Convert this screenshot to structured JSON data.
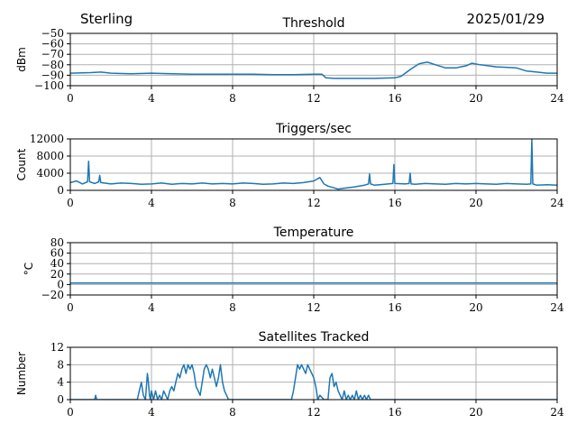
{
  "header": {
    "site": "Sterling",
    "date": "2025/01/29"
  },
  "colors": {
    "series": "#1f77b4",
    "grid": "#b0b0b0"
  },
  "chart_data": [
    {
      "type": "line",
      "title": "Threshold",
      "ylabel": "dBm",
      "xlim": [
        0,
        24
      ],
      "ylim": [
        -100,
        -50
      ],
      "xticks": [
        "0",
        "4",
        "8",
        "12",
        "16",
        "20",
        "24"
      ],
      "yticks": [
        "−100",
        "−90",
        "−80",
        "−70",
        "−60",
        "−50"
      ],
      "grid": true,
      "x": [
        0,
        1,
        1.5,
        2,
        3,
        4,
        5,
        6,
        7,
        8,
        9,
        10,
        11,
        12,
        12.4,
        12.6,
        13,
        14,
        15,
        16,
        16.3,
        16.8,
        17.2,
        17.6,
        18,
        18.5,
        19,
        19.5,
        19.8,
        20.2,
        21,
        22,
        22.5,
        23,
        23.5,
        24
      ],
      "y": [
        -88,
        -87.5,
        -87,
        -88,
        -88.5,
        -88,
        -88.5,
        -89,
        -89,
        -89,
        -89,
        -89.5,
        -89.5,
        -89,
        -89,
        -92.5,
        -93,
        -93,
        -93,
        -92.5,
        -91,
        -84,
        -79,
        -77.5,
        -80,
        -83,
        -83,
        -81,
        -78.5,
        -80,
        -82,
        -83,
        -86,
        -87,
        -88,
        -88
      ]
    },
    {
      "type": "line",
      "title": "Triggers/sec",
      "ylabel": "Count",
      "xlim": [
        0,
        24
      ],
      "ylim": [
        0,
        12000
      ],
      "xticks": [
        "0",
        "4",
        "8",
        "12",
        "16",
        "20",
        "24"
      ],
      "yticks": [
        "0",
        "4000",
        "8000",
        "12000"
      ],
      "grid": true,
      "x": [
        0,
        0.3,
        0.6,
        0.85,
        0.9,
        0.95,
        1.2,
        1.4,
        1.45,
        1.5,
        2,
        2.5,
        3,
        3.5,
        4,
        4.5,
        5,
        5.5,
        6,
        6.5,
        7,
        7.5,
        8,
        8.5,
        9,
        9.5,
        10,
        10.5,
        11,
        11.5,
        12,
        12.3,
        12.5,
        12.7,
        13,
        13.2,
        13.5,
        14,
        14.5,
        14.7,
        14.75,
        14.8,
        15,
        15.5,
        15.9,
        15.95,
        16,
        16.5,
        16.7,
        16.75,
        16.8,
        17,
        17.5,
        18,
        18.5,
        19,
        19.5,
        20,
        20.5,
        21,
        21.5,
        22,
        22.5,
        22.7,
        22.75,
        22.8,
        23,
        23.5,
        24
      ],
      "y": [
        1800,
        2200,
        1500,
        2000,
        6800,
        2000,
        1600,
        2000,
        3500,
        1800,
        1500,
        1700,
        1600,
        1400,
        1500,
        1700,
        1400,
        1600,
        1500,
        1700,
        1500,
        1600,
        1500,
        1700,
        1600,
        1400,
        1500,
        1700,
        1600,
        1800,
        2200,
        3000,
        1500,
        1000,
        600,
        300,
        500,
        800,
        1200,
        1500,
        3800,
        1500,
        1200,
        1400,
        1600,
        6000,
        1600,
        1500,
        1600,
        4000,
        1500,
        1400,
        1600,
        1500,
        1400,
        1600,
        1500,
        1600,
        1500,
        1400,
        1600,
        1500,
        1400,
        1500,
        12000,
        1500,
        1200,
        1300,
        1200
      ]
    },
    {
      "type": "line",
      "title": "Temperature",
      "ylabel": "°C",
      "xlim": [
        0,
        24
      ],
      "ylim": [
        -20,
        80
      ],
      "xticks": [
        "0",
        "4",
        "8",
        "12",
        "16",
        "20",
        "24"
      ],
      "yticks": [
        "−20",
        "0",
        "20",
        "40",
        "60",
        "80"
      ],
      "grid": true,
      "x": [
        0,
        24
      ],
      "y": [
        3,
        3
      ]
    },
    {
      "type": "line",
      "title": "Satellites Tracked",
      "ylabel": "Number",
      "xlim": [
        0,
        24
      ],
      "ylim": [
        0,
        12
      ],
      "xticks": [
        "0",
        "4",
        "8",
        "12",
        "16",
        "20",
        "24"
      ],
      "yticks": [
        "0",
        "4",
        "8",
        "12"
      ],
      "grid": true,
      "x": [
        0,
        1.2,
        1.25,
        1.3,
        1.35,
        3.3,
        3.4,
        3.5,
        3.6,
        3.7,
        3.75,
        3.8,
        3.85,
        3.9,
        3.95,
        4,
        4.1,
        4.2,
        4.3,
        4.4,
        4.5,
        4.6,
        4.7,
        4.8,
        4.9,
        5,
        5.1,
        5.2,
        5.3,
        5.4,
        5.5,
        5.6,
        5.7,
        5.8,
        5.9,
        6,
        6.1,
        6.2,
        6.3,
        6.4,
        6.5,
        6.6,
        6.7,
        6.8,
        6.9,
        7,
        7.1,
        7.2,
        7.3,
        7.4,
        7.5,
        7.6,
        7.7,
        7.8,
        10.9,
        11,
        11.1,
        11.2,
        11.3,
        11.4,
        11.5,
        11.6,
        11.7,
        11.8,
        11.9,
        12,
        12.1,
        12.2,
        12.3,
        12.5,
        12.7,
        12.8,
        12.9,
        13,
        13.1,
        13.2,
        13.3,
        13.4,
        13.5,
        13.6,
        13.7,
        13.8,
        13.9,
        14,
        14.1,
        14.2,
        14.3,
        14.4,
        14.5,
        14.6,
        14.7,
        14.8,
        24
      ],
      "y": [
        0,
        0,
        1,
        0,
        0,
        0,
        2,
        4,
        1,
        0,
        3,
        6,
        4,
        1,
        0,
        2,
        0,
        2,
        0,
        1,
        0,
        2,
        1,
        0,
        2,
        3,
        2,
        4,
        6,
        5,
        7,
        8,
        6,
        8,
        7,
        8,
        6,
        3,
        2,
        1,
        4,
        7,
        8,
        7,
        5,
        7,
        5,
        3,
        5,
        8,
        4,
        2,
        1,
        0,
        0,
        2,
        5,
        8,
        7,
        8,
        7,
        6,
        8,
        7,
        6,
        5,
        3,
        0,
        1,
        0,
        0,
        5,
        6,
        3,
        4,
        2,
        1,
        0,
        2,
        0,
        1,
        0,
        1,
        0,
        2,
        0,
        1,
        0,
        1,
        0,
        1,
        0,
        0
      ]
    }
  ]
}
